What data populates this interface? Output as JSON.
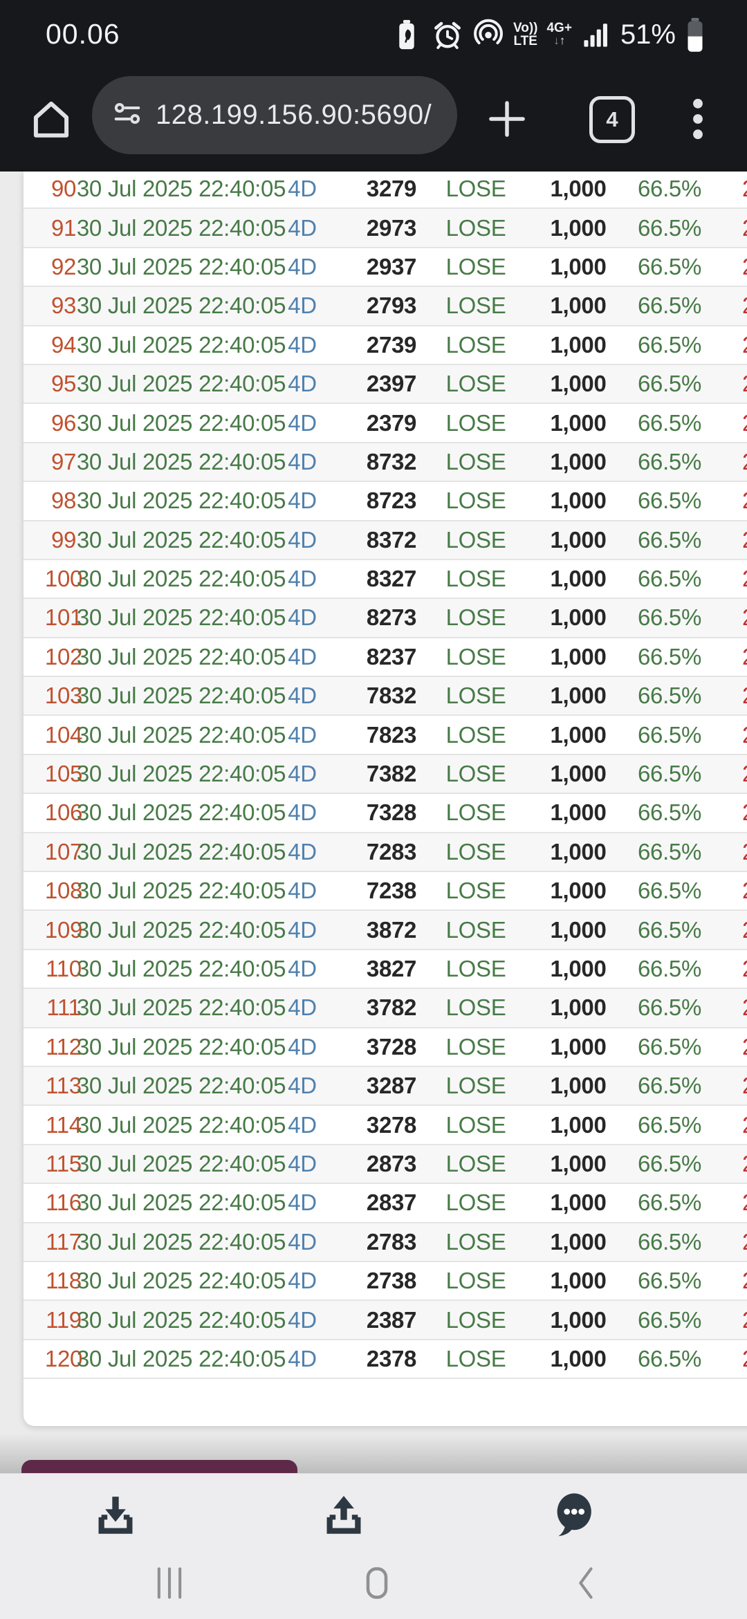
{
  "status_bar": {
    "time": "00.06",
    "battery_percent": "51%",
    "volte_line1": "Vo))",
    "volte_line2": "LTE",
    "network": "4G+",
    "network_arrows": {
      "down": "↓",
      "up": "↑"
    },
    "icons": [
      "battery-saver-icon",
      "alarm-icon",
      "hotspot-icon",
      "volte-indicator",
      "4g-plus-indicator",
      "signal-bars-icon",
      "battery-icon"
    ]
  },
  "browser": {
    "url": "128.199.156.90:5690/",
    "tab_count": "4",
    "toolbar_icons": [
      "home-icon",
      "site-settings-icon",
      "new-tab-plus-icon",
      "tab-switcher",
      "kebab-menu-icon"
    ]
  },
  "table": {
    "shared": {
      "date": "30 Jul 2025 22:40:05",
      "game_type": "4D",
      "result": "LOSE",
      "stake": "1,000",
      "percent": "66.5%",
      "clipped_value": "2"
    },
    "rows": [
      {
        "i": 90,
        "n": "3279"
      },
      {
        "i": 91,
        "n": "2973"
      },
      {
        "i": 92,
        "n": "2937"
      },
      {
        "i": 93,
        "n": "2793"
      },
      {
        "i": 94,
        "n": "2739"
      },
      {
        "i": 95,
        "n": "2397"
      },
      {
        "i": 96,
        "n": "2379"
      },
      {
        "i": 97,
        "n": "8732"
      },
      {
        "i": 98,
        "n": "8723"
      },
      {
        "i": 99,
        "n": "8372"
      },
      {
        "i": 100,
        "n": "8327"
      },
      {
        "i": 101,
        "n": "8273"
      },
      {
        "i": 102,
        "n": "8237"
      },
      {
        "i": 103,
        "n": "7832"
      },
      {
        "i": 104,
        "n": "7823"
      },
      {
        "i": 105,
        "n": "7382"
      },
      {
        "i": 106,
        "n": "7328"
      },
      {
        "i": 107,
        "n": "7283"
      },
      {
        "i": 108,
        "n": "7238"
      },
      {
        "i": 109,
        "n": "3872"
      },
      {
        "i": 110,
        "n": "3827"
      },
      {
        "i": 111,
        "n": "3782"
      },
      {
        "i": 112,
        "n": "3728"
      },
      {
        "i": 113,
        "n": "3287"
      },
      {
        "i": 114,
        "n": "3278"
      },
      {
        "i": 115,
        "n": "2873"
      },
      {
        "i": 116,
        "n": "2837"
      },
      {
        "i": 117,
        "n": "2783"
      },
      {
        "i": 118,
        "n": "2738"
      },
      {
        "i": 119,
        "n": "2387"
      },
      {
        "i": 120,
        "n": "2378"
      }
    ]
  },
  "footer": {
    "icons": [
      "download-icon",
      "share-upload-icon",
      "chat-bubble-icon"
    ]
  },
  "nav_bar": {
    "icons": [
      "recents-icon",
      "home-nav-icon",
      "back-icon"
    ]
  },
  "colors": {
    "statusbar_bg": "#17181b",
    "omnibox_bg": "#3a3b3f",
    "page_bg": "#ebebec",
    "card_bg": "#ffffff",
    "row_alt_bg": "#f7f7f8",
    "row_divider": "#e4e4e5",
    "index_red": "#c0512e",
    "date_green": "#477a46",
    "type_blue": "#5081ad",
    "value_dark": "#272727",
    "clipped_red": "#c43131",
    "purple_button": "#5e2848",
    "footer_icon": "#2d3842",
    "nav_icon": "#8f9093"
  }
}
